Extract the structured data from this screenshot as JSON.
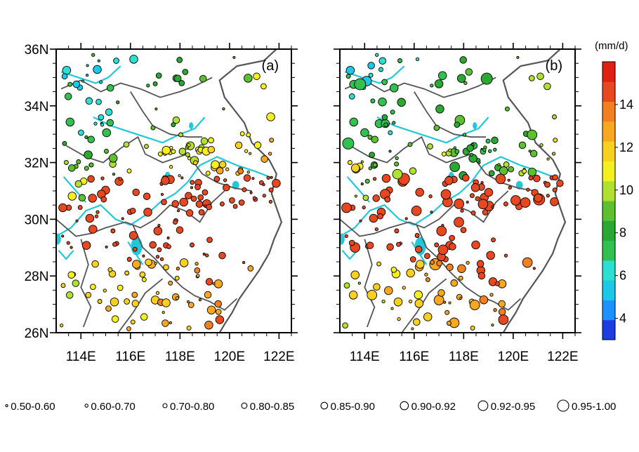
{
  "chart_data": {
    "type": "scatter",
    "panels": [
      {
        "label": "(a)"
      },
      {
        "label": "(b)"
      }
    ],
    "x_axis": {
      "range": [
        113.0,
        122.5
      ],
      "ticks": [
        {
          "value": 114,
          "label": "114E"
        },
        {
          "value": 116,
          "label": "116E"
        },
        {
          "value": 118,
          "label": "118E"
        },
        {
          "value": 120,
          "label": "120E"
        },
        {
          "value": 122,
          "label": "122E"
        }
      ]
    },
    "y_axis": {
      "range": [
        26.0,
        36.0
      ],
      "ticks": [
        {
          "value": 36,
          "label": "36N"
        },
        {
          "value": 34,
          "label": "34N"
        },
        {
          "value": 32,
          "label": "32N"
        },
        {
          "value": 30,
          "label": "30N"
        },
        {
          "value": 28,
          "label": "28N"
        },
        {
          "value": 26,
          "label": "26N"
        }
      ]
    },
    "colorbar": {
      "unit": "(mm/d)",
      "range": [
        3,
        16
      ],
      "boundaries": [
        3,
        4,
        5,
        6,
        7,
        8,
        9,
        10,
        11,
        12,
        13,
        14,
        15,
        16
      ],
      "colors": [
        "#1a3ee0",
        "#1e90ff",
        "#1cc8e8",
        "#2be0d0",
        "#32c050",
        "#2aa832",
        "#5cc030",
        "#b0e030",
        "#f4f020",
        "#f8d020",
        "#f8a820",
        "#f08020",
        "#e84820",
        "#e02010"
      ],
      "tick_labels": [
        {
          "value": 4,
          "label": "4"
        },
        {
          "value": 6,
          "label": "6"
        },
        {
          "value": 8,
          "label": "8"
        },
        {
          "value": 10,
          "label": "10"
        },
        {
          "value": 12,
          "label": "12"
        },
        {
          "value": 14,
          "label": "14"
        }
      ]
    },
    "size_legend": [
      {
        "label": "0.50-0.60",
        "level": 1
      },
      {
        "label": "0.60-0.70",
        "level": 2
      },
      {
        "label": "0.70-0.80",
        "level": 3
      },
      {
        "label": "0.80-0.85",
        "level": 4
      },
      {
        "label": "0.85-0.90",
        "level": 5
      },
      {
        "label": "0.90-0.92",
        "level": 6
      },
      {
        "label": "0.92-0.95",
        "level": 7
      },
      {
        "label": "0.95-1.00",
        "level": 8
      }
    ],
    "colors": {
      "coastline": "#555555",
      "rivers": "#22c8d8",
      "frame": "#000000"
    }
  }
}
